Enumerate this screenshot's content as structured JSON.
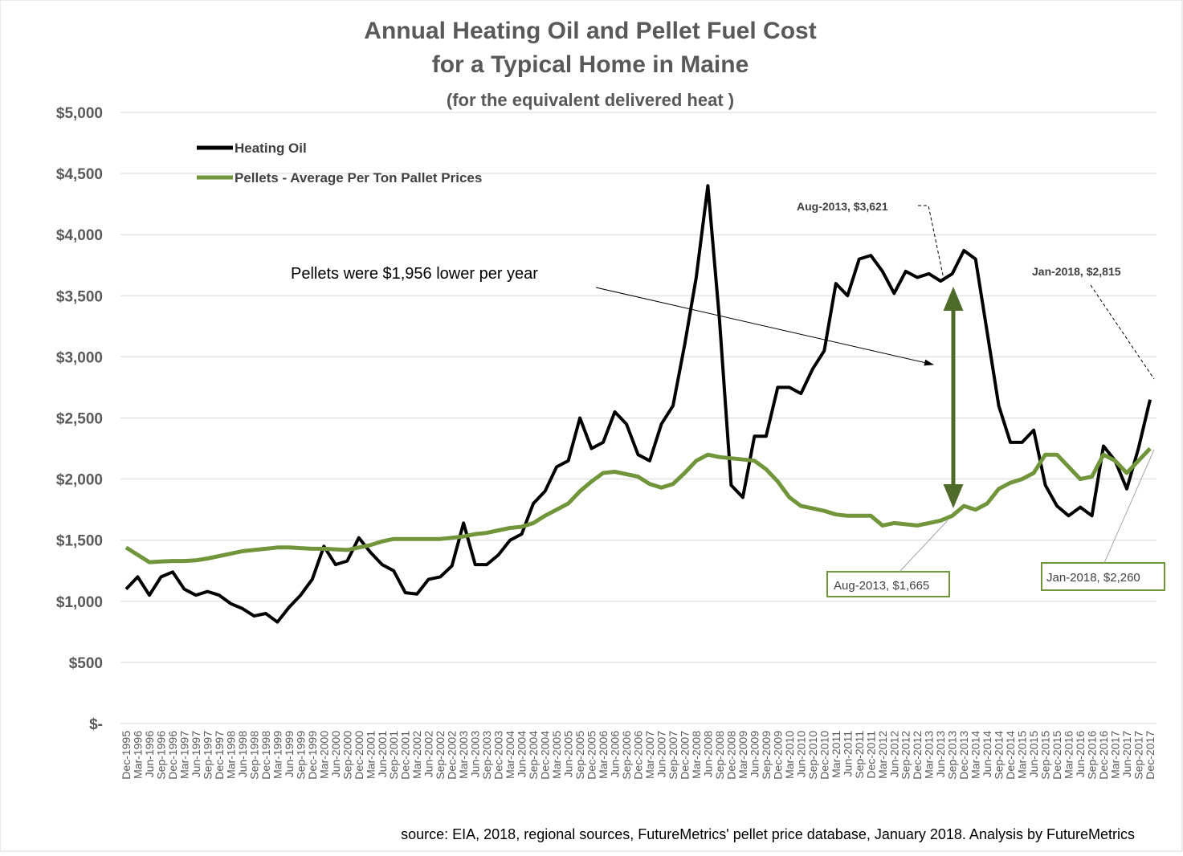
{
  "chart_data": {
    "type": "line",
    "title_lines": [
      "Annual Heating Oil and Pellet Fuel Cost",
      "for a Typical Home in Maine",
      "(for the equivalent delivered heat )"
    ],
    "categories": [
      "Dec-1995",
      "Mar-1996",
      "Jun-1996",
      "Sep-1996",
      "Dec-1996",
      "Mar-1997",
      "Jun-1997",
      "Sep-1997",
      "Dec-1997",
      "Mar-1998",
      "Jun-1998",
      "Sep-1998",
      "Dec-1998",
      "Mar-1999",
      "Jun-1999",
      "Sep-1999",
      "Dec-1999",
      "Mar-2000",
      "Jun-2000",
      "Sep-2000",
      "Dec-2000",
      "Mar-2001",
      "Jun-2001",
      "Sep-2001",
      "Dec-2001",
      "Mar-2002",
      "Jun-2002",
      "Sep-2002",
      "Dec-2002",
      "Mar-2003",
      "Jun-2003",
      "Sep-2003",
      "Dec-2003",
      "Mar-2004",
      "Jun-2004",
      "Sep-2004",
      "Dec-2004",
      "Mar-2005",
      "Jun-2005",
      "Sep-2005",
      "Dec-2005",
      "Mar-2006",
      "Jun-2006",
      "Sep-2006",
      "Dec-2006",
      "Mar-2007",
      "Jun-2007",
      "Sep-2007",
      "Dec-2007",
      "Mar-2008",
      "Jun-2008",
      "Sep-2008",
      "Dec-2008",
      "Mar-2009",
      "Jun-2009",
      "Sep-2009",
      "Dec-2009",
      "Mar-2010",
      "Jun-2010",
      "Sep-2010",
      "Dec-2010",
      "Mar-2011",
      "Jun-2011",
      "Sep-2011",
      "Dec-2011",
      "Mar-2012",
      "Jun-2012",
      "Sep-2012",
      "Dec-2012",
      "Mar-2013",
      "Jun-2013",
      "Sep-2013",
      "Dec-2013",
      "Mar-2014",
      "Jun-2014",
      "Sep-2014",
      "Dec-2014",
      "Mar-2015",
      "Jun-2015",
      "Sep-2015",
      "Dec-2015",
      "Mar-2016",
      "Jun-2016",
      "Sep-2016",
      "Dec-2016",
      "Mar-2017",
      "Jun-2017",
      "Sep-2017",
      "Dec-2017"
    ],
    "series": [
      {
        "name": "Heating Oil",
        "color": "#000000",
        "values": [
          1100,
          1200,
          1050,
          1200,
          1240,
          1100,
          1050,
          1080,
          1050,
          980,
          940,
          880,
          900,
          830,
          950,
          1050,
          1180,
          1450,
          1300,
          1330,
          1520,
          1400,
          1300,
          1250,
          1070,
          1060,
          1180,
          1200,
          1290,
          1640,
          1300,
          1300,
          1380,
          1500,
          1550,
          1800,
          1900,
          2100,
          2150,
          2500,
          2250,
          2300,
          2550,
          2450,
          2200,
          2150,
          2450,
          2600,
          3100,
          3650,
          4400,
          3300,
          1950,
          1850,
          2350,
          2350,
          2750,
          2750,
          2700,
          2900,
          3050,
          3600,
          3500,
          3800,
          3830,
          3700,
          3520,
          3700,
          3650,
          3680,
          3620,
          3680,
          3870,
          3800,
          3200,
          2600,
          2300,
          2300,
          2400,
          1950,
          1780,
          1700,
          1770,
          1700,
          2270,
          2150,
          1920,
          2250,
          2650
        ]
      },
      {
        "name": "Pellets - Average Per Ton Pallet Prices",
        "color": "#70953a",
        "values": [
          1440,
          1380,
          1320,
          1325,
          1330,
          1330,
          1335,
          1350,
          1370,
          1390,
          1410,
          1420,
          1430,
          1440,
          1440,
          1435,
          1430,
          1430,
          1425,
          1420,
          1440,
          1460,
          1490,
          1510,
          1510,
          1510,
          1510,
          1510,
          1520,
          1530,
          1550,
          1560,
          1580,
          1600,
          1610,
          1640,
          1700,
          1750,
          1800,
          1900,
          1980,
          2050,
          2060,
          2040,
          2020,
          1960,
          1930,
          1960,
          2050,
          2150,
          2200,
          2180,
          2170,
          2160,
          2150,
          2080,
          1980,
          1850,
          1780,
          1760,
          1740,
          1710,
          1700,
          1700,
          1700,
          1620,
          1640,
          1630,
          1620,
          1640,
          1660,
          1700,
          1780,
          1750,
          1800,
          1920,
          1970,
          2000,
          2050,
          2200,
          2200,
          2100,
          2000,
          2020,
          2200,
          2150,
          2050,
          2150,
          2250
        ]
      }
    ],
    "ylim": [
      0,
      5000
    ],
    "yticks": [
      {
        "value": 0,
        "label": "$-"
      },
      {
        "value": 500,
        "label": "$500"
      },
      {
        "value": 1000,
        "label": "$1,000"
      },
      {
        "value": 1500,
        "label": "$1,500"
      },
      {
        "value": 2000,
        "label": "$2,000"
      },
      {
        "value": 2500,
        "label": "$2,500"
      },
      {
        "value": 3000,
        "label": "$3,000"
      },
      {
        "value": 3500,
        "label": "$3,500"
      },
      {
        "value": 4000,
        "label": "$4,000"
      },
      {
        "value": 4500,
        "label": "$4,500"
      },
      {
        "value": 5000,
        "label": "$5,000"
      }
    ],
    "grid": true,
    "annotations": [
      {
        "text": "Pellets were $1,956 lower per year"
      },
      {
        "text": "Aug-2013,  $3,621"
      },
      {
        "text": "Jan-2018,  $2,815"
      },
      {
        "text": "Aug-2013,  $1,665"
      },
      {
        "text": "Jan-2018,  $2,260"
      }
    ],
    "source": "source: EIA, 2018, regional sources, FutureMetrics'  pellet price database, January 2018.  Analysis by FutureMetrics"
  }
}
